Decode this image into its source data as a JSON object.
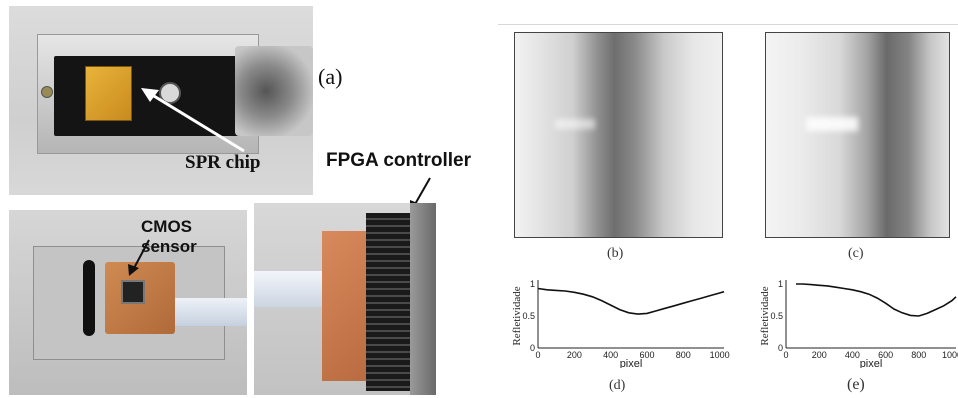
{
  "figure": {
    "panels": {
      "a": {
        "caption": "(a)",
        "spr_label": "SPR chip",
        "fpga_label": "FPGA controller",
        "cmos_label": "CMOS sensor"
      },
      "b": {
        "caption": "(b)"
      },
      "c": {
        "caption": "(c)"
      },
      "d": {
        "caption": "(d)"
      },
      "e": {
        "caption": "(e)"
      }
    },
    "colors": {
      "gold_chip": "#d9a02a",
      "pcb_orange": "#c97d4a",
      "black_holder": "#141414"
    }
  },
  "chart_data": [
    {
      "type": "line",
      "panel": "d",
      "xlabel": "pixel",
      "ylabel": "Refletividade",
      "xlim": [
        0,
        1024
      ],
      "ylim": [
        0,
        1
      ],
      "xticks": [
        0,
        200,
        400,
        600,
        800,
        1000
      ],
      "yticks": [
        0,
        0.5,
        1
      ],
      "series": [
        {
          "x": [
            0,
            50,
            100,
            150,
            200,
            250,
            300,
            350,
            400,
            450,
            500,
            550,
            600,
            650,
            700,
            750,
            800,
            850,
            900,
            950,
            1000,
            1024
          ],
          "y": [
            0.93,
            0.91,
            0.9,
            0.89,
            0.87,
            0.84,
            0.8,
            0.74,
            0.67,
            0.6,
            0.55,
            0.53,
            0.54,
            0.58,
            0.62,
            0.66,
            0.7,
            0.74,
            0.78,
            0.82,
            0.86,
            0.88
          ]
        }
      ]
    },
    {
      "type": "line",
      "panel": "e",
      "xlabel": "pixel",
      "ylabel": "Refletividade",
      "xlim": [
        0,
        1024
      ],
      "ylim": [
        0,
        1
      ],
      "xticks": [
        0,
        200,
        400,
        600,
        800,
        1000
      ],
      "yticks": [
        0,
        0.5,
        1
      ],
      "series": [
        {
          "x": [
            60,
            100,
            150,
            200,
            250,
            300,
            350,
            400,
            450,
            500,
            550,
            600,
            650,
            700,
            750,
            800,
            850,
            900,
            950,
            1000,
            1024
          ],
          "y": [
            1.0,
            1.0,
            0.99,
            0.98,
            0.97,
            0.95,
            0.93,
            0.91,
            0.88,
            0.84,
            0.78,
            0.7,
            0.61,
            0.55,
            0.51,
            0.5,
            0.54,
            0.6,
            0.66,
            0.74,
            0.8
          ]
        }
      ]
    }
  ]
}
